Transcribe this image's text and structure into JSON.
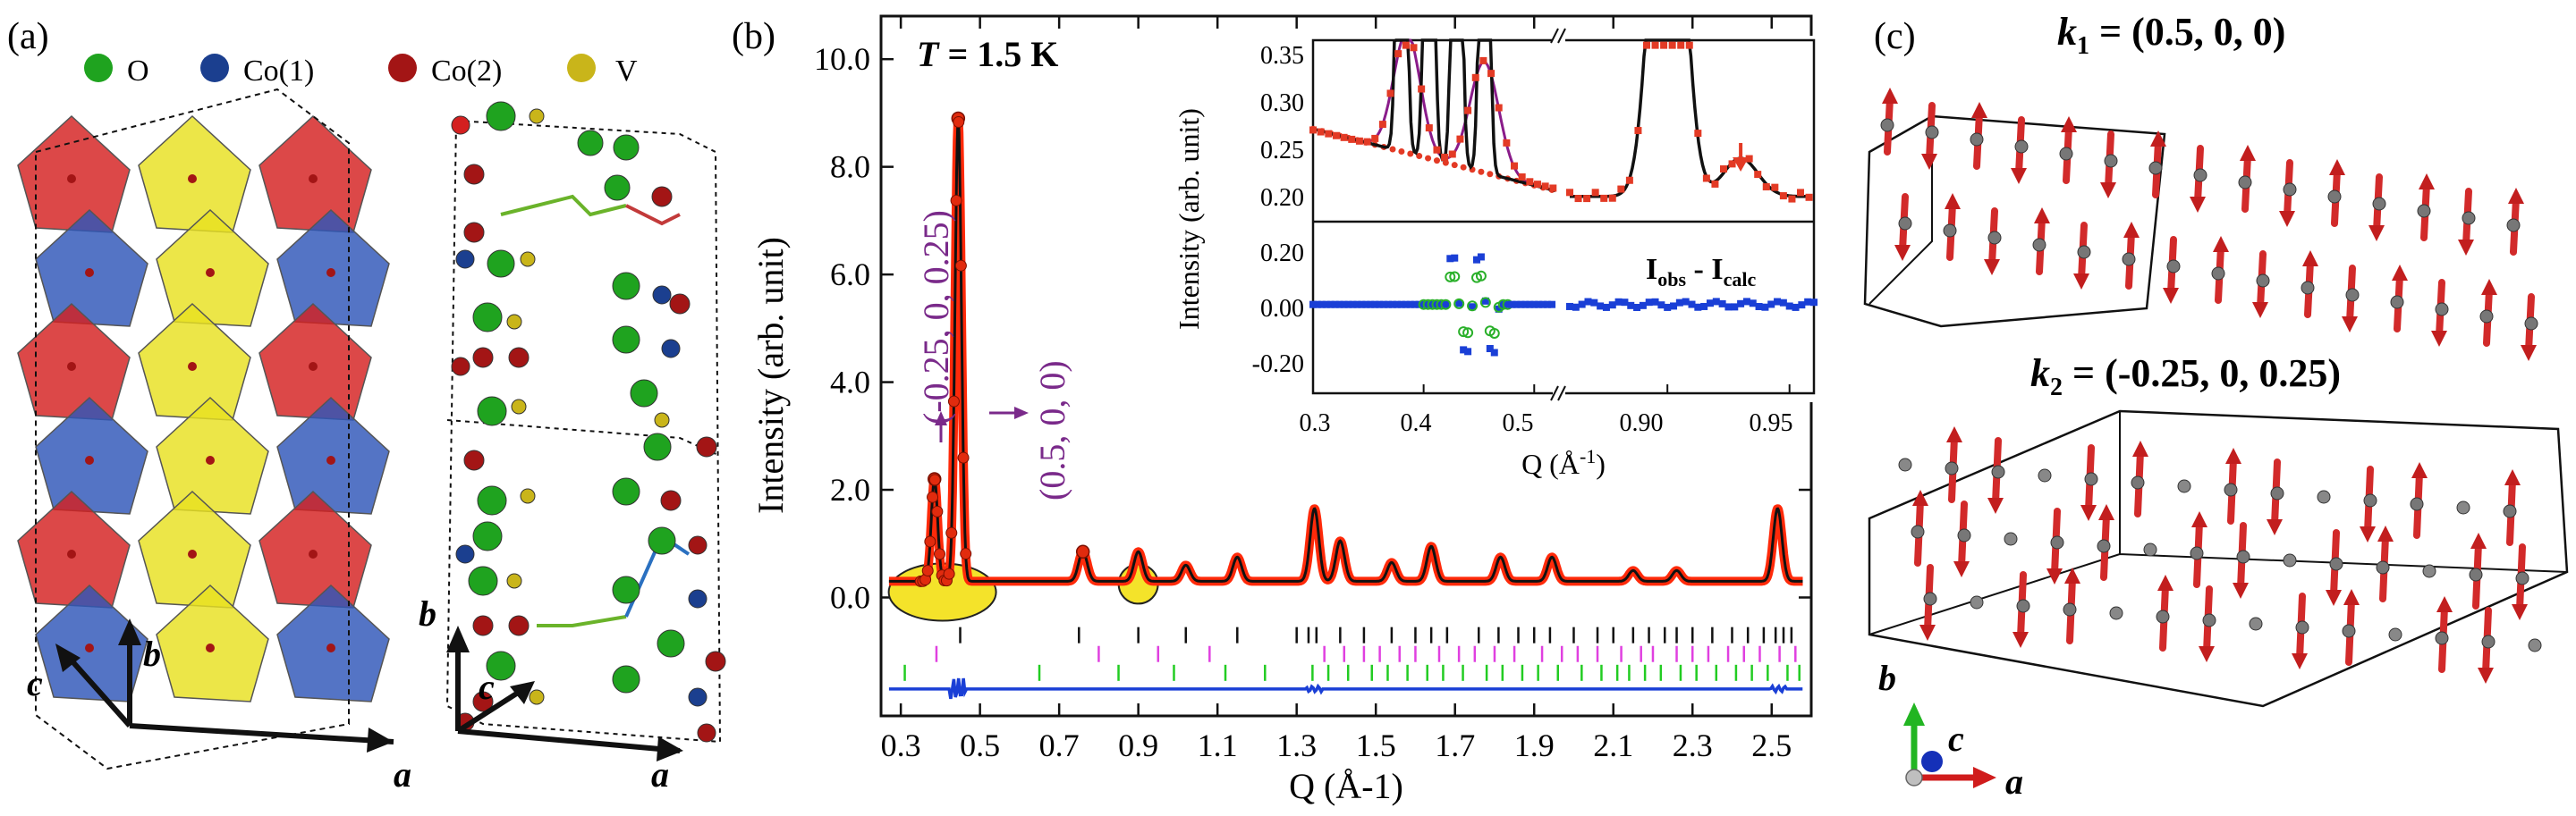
{
  "figure": {
    "panel_a": {
      "label": "(a)",
      "legend": [
        {
          "name": "O",
          "color": "#1fa31f"
        },
        {
          "name": "Co(1)",
          "color": "#1b3f8f"
        },
        {
          "name": "Co(2)",
          "color": "#a31515"
        },
        {
          "name": "V",
          "color": "#c9b51a"
        }
      ],
      "axes_left": {
        "a": "a",
        "b": "b",
        "c": "c"
      },
      "axes_right": {
        "a": "a",
        "b": "b",
        "c": "c"
      }
    },
    "panel_b": {
      "label": "(b)",
      "temperature_prefix": "T",
      "temperature_value": " = 1.5 K",
      "annotation_1": "(-0.25, 0, 0.25)",
      "annotation_2": "(0.5, 0, 0)",
      "inset_ylabel": "Intensity (arb. unit)",
      "inset_xlabel": "Q (Å",
      "inset_xlabel_sup": "-1",
      "inset_xlabel_end": ")",
      "inset_diff_label": "I",
      "inset_diff_obs": "obs",
      "inset_diff_mid": " - I",
      "inset_diff_calc": "calc",
      "inset_top_yticks": [
        "0.35",
        "0.30",
        "0.25",
        "0.20"
      ],
      "inset_bot_yticks": [
        "0.20",
        "0.00",
        "-0.20"
      ],
      "inset_xticks": [
        "0.3",
        "0.4",
        "0.5",
        "0.90",
        "0.95"
      ]
    },
    "panel_c": {
      "label": "(c)",
      "k1_prefix": "k",
      "k1_sub": "1",
      "k1_value": " = (0.5, 0, 0)",
      "k2_prefix": "k",
      "k2_sub": "2",
      "k2_value": " = (-0.25, 0, 0.25)",
      "axes": {
        "a": "a",
        "b": "b",
        "c": "c"
      }
    }
  },
  "chart_data": {
    "type": "line",
    "xlabel": "Q (Å-1)",
    "ylabel": "Intensity (arb. unit)",
    "xlim": [
      0.25,
      2.6
    ],
    "ylim": [
      -2.2,
      10.8
    ],
    "xticks": [
      0.3,
      0.5,
      0.7,
      0.9,
      1.1,
      1.3,
      1.5,
      1.7,
      1.9,
      2.1,
      2.3,
      2.5
    ],
    "xtick_labels": [
      "0.3",
      "0.5",
      "0.7",
      "0.9",
      "1.1",
      "1.3",
      "1.5",
      "1.7",
      "1.9",
      "2.1",
      "2.3",
      "2.5"
    ],
    "yticks": [
      0,
      2,
      4,
      6,
      8,
      10
    ],
    "ytick_labels": [
      "0.0",
      "2.0",
      "4.0",
      "6.0",
      "8.0",
      "10.0"
    ],
    "baseline": 0.3,
    "peaks": [
      {
        "q": 0.385,
        "height": 1.9
      },
      {
        "q": 0.445,
        "height": 8.6
      },
      {
        "q": 0.76,
        "height": 0.55
      },
      {
        "q": 0.9,
        "height": 0.55
      },
      {
        "q": 1.02,
        "height": 0.3
      },
      {
        "q": 1.15,
        "height": 0.45
      },
      {
        "q": 1.345,
        "height": 1.35
      },
      {
        "q": 1.41,
        "height": 0.75
      },
      {
        "q": 1.54,
        "height": 0.35
      },
      {
        "q": 1.64,
        "height": 0.65
      },
      {
        "q": 1.815,
        "height": 0.45
      },
      {
        "q": 1.945,
        "height": 0.45
      },
      {
        "q": 2.15,
        "height": 0.2
      },
      {
        "q": 2.26,
        "height": 0.2
      },
      {
        "q": 2.515,
        "height": 1.35
      }
    ],
    "difference_offset": -1.7,
    "tick_rows": [
      {
        "color": "#111111",
        "y": -0.7
      },
      {
        "color": "#e040e0",
        "y": -1.05
      },
      {
        "color": "#22cc22",
        "y": -1.4
      }
    ],
    "inset": {
      "top_ylim": [
        0.18,
        0.36
      ],
      "bottom_ylim": [
        -0.3,
        0.28
      ],
      "segments": [
        [
          0.3,
          0.52
        ],
        [
          0.86,
          0.96
        ]
      ]
    }
  }
}
